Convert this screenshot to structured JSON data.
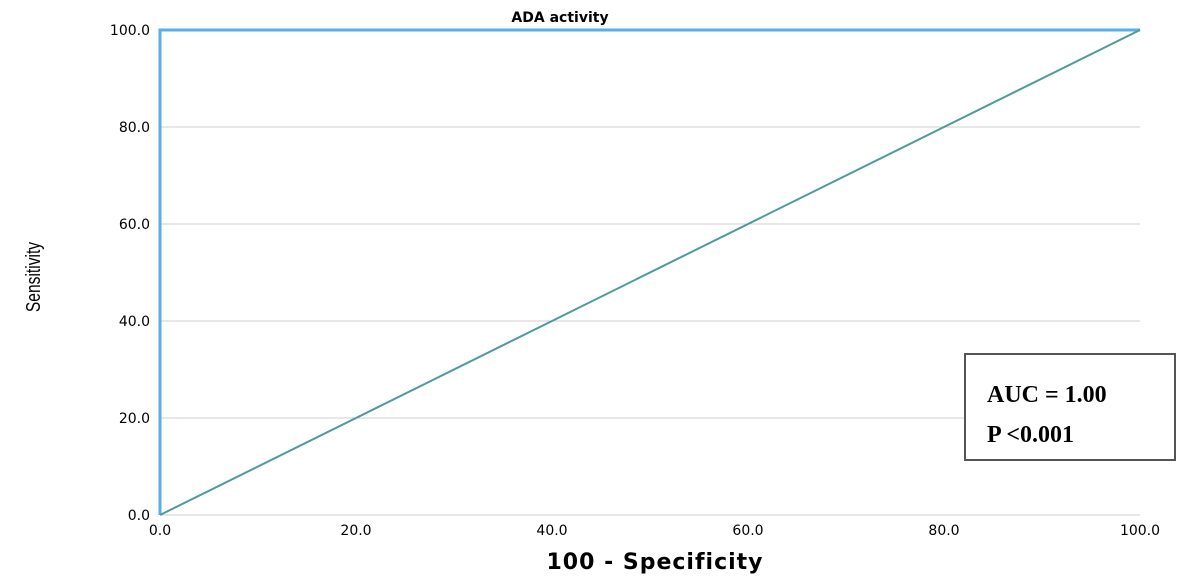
{
  "chart_data": {
    "type": "line",
    "title": "ADA activity",
    "xlabel": "100 - Specificity",
    "ylabel": "Sensitivity",
    "xlim": [
      0,
      100
    ],
    "ylim": [
      0,
      100
    ],
    "x_ticks": [
      "0.0",
      "20.0",
      "40.0",
      "60.0",
      "80.0",
      "100.0"
    ],
    "y_ticks": [
      "0.0",
      "20.0",
      "40.0",
      "60.0",
      "80.0",
      "100.0"
    ],
    "grid": true,
    "series": [
      {
        "x": [
          0,
          0,
          100
        ],
        "y": [
          0,
          100,
          100
        ],
        "color": "#5aaee3"
      },
      {
        "x": [
          0,
          100
        ],
        "y": [
          0,
          100
        ],
        "color": "#4f9a9a"
      }
    ],
    "annotation": {
      "lines": [
        "AUC = 1.00",
        "P <0.001"
      ]
    }
  }
}
